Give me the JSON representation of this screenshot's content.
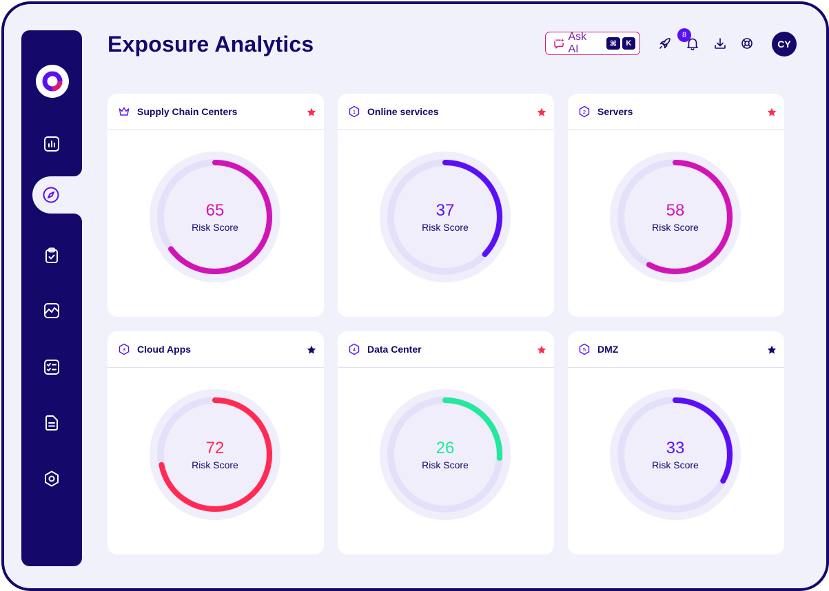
{
  "header": {
    "title": "Exposure Analytics",
    "ask_ai": {
      "label": "Ask AI",
      "keys": [
        "⌘",
        "K"
      ]
    },
    "notifications_count": "8",
    "avatar_initials": "CY"
  },
  "sidebar": {
    "items": [
      {
        "name": "dashboard",
        "icon": "bar-chart-icon",
        "active": false
      },
      {
        "name": "explore",
        "icon": "compass-icon",
        "active": true
      },
      {
        "name": "tasks",
        "icon": "clipboard-check-icon",
        "active": false
      },
      {
        "name": "trends",
        "icon": "line-chart-icon",
        "active": false
      },
      {
        "name": "checklists",
        "icon": "checklist-icon",
        "active": false
      },
      {
        "name": "reports",
        "icon": "document-icon",
        "active": false
      },
      {
        "name": "settings",
        "icon": "hexagon-settings-icon",
        "active": false
      }
    ]
  },
  "colors": {
    "navy": "#15086b",
    "magenta": "#d015b4",
    "violet": "#5a10f5",
    "red": "#ff2b52",
    "green": "#24e89a",
    "track": "#e3e1f9",
    "halo": "#efeefa"
  },
  "cards": [
    {
      "title": "Supply Chain Centers",
      "badge": "",
      "icon": "crown-icon",
      "score": "65",
      "value": 65,
      "score_label": "Risk Score",
      "color": "#d015b4",
      "star_color": "#ff2b52"
    },
    {
      "title": "Online services",
      "badge": "1",
      "icon": "hexagon-1-icon",
      "score": "37",
      "value": 37,
      "score_label": "Risk Score",
      "color": "#5a10f5",
      "star_color": "#ff2b52"
    },
    {
      "title": "Servers",
      "badge": "2",
      "icon": "hexagon-2-icon",
      "score": "58",
      "value": 58,
      "score_label": "Risk Score",
      "color": "#d015b4",
      "star_color": "#ff2b52"
    },
    {
      "title": "Cloud Apps",
      "badge": "3",
      "icon": "hexagon-3-icon",
      "score": "72",
      "value": 72,
      "score_label": "Risk Score",
      "color": "#ff2b52",
      "star_color": "#15086b"
    },
    {
      "title": "Data Center",
      "badge": "4",
      "icon": "hexagon-4-icon",
      "score": "26",
      "value": 26,
      "score_label": "Risk Score",
      "color": "#24e89a",
      "star_color": "#ff2b52"
    },
    {
      "title": "DMZ",
      "badge": "5",
      "icon": "hexagon-5-icon",
      "score": "33",
      "value": 33,
      "score_label": "Risk Score",
      "color": "#5a10f5",
      "star_color": "#15086b"
    }
  ]
}
